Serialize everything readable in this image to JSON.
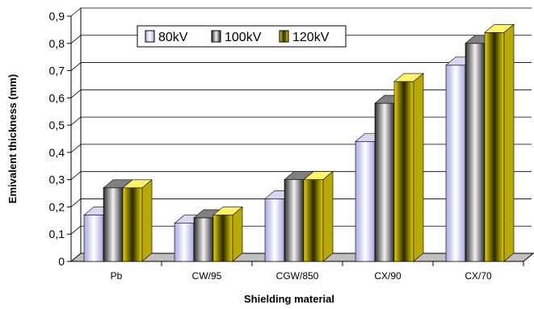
{
  "chart_data": {
    "type": "bar",
    "categories": [
      "Pb",
      "CW/95",
      "CGW/850",
      "CX/90",
      "CX/70"
    ],
    "series": [
      {
        "name": "80kV",
        "values": [
          0.17,
          0.14,
          0.23,
          0.44,
          0.72
        ]
      },
      {
        "name": "100kV",
        "values": [
          0.27,
          0.16,
          0.3,
          0.58,
          0.8
        ]
      },
      {
        "name": "120kV",
        "values": [
          0.27,
          0.17,
          0.3,
          0.66,
          0.84
        ]
      }
    ],
    "xlabel": "Shielding material",
    "ylabel": "Emivalent thickness (mm)",
    "ylim": [
      0,
      0.9
    ],
    "yticks": [
      "0",
      "0,1",
      "0,2",
      "0,3",
      "0,4",
      "0,5",
      "0,6",
      "0,7",
      "0,8",
      "0,9"
    ],
    "grid": true,
    "legend_position": "top-center",
    "style": "3d-bar",
    "colors": {
      "80kV": "#b9b9ea",
      "100kV": "#4a4a4a",
      "120kV": "#ffee00"
    }
  }
}
